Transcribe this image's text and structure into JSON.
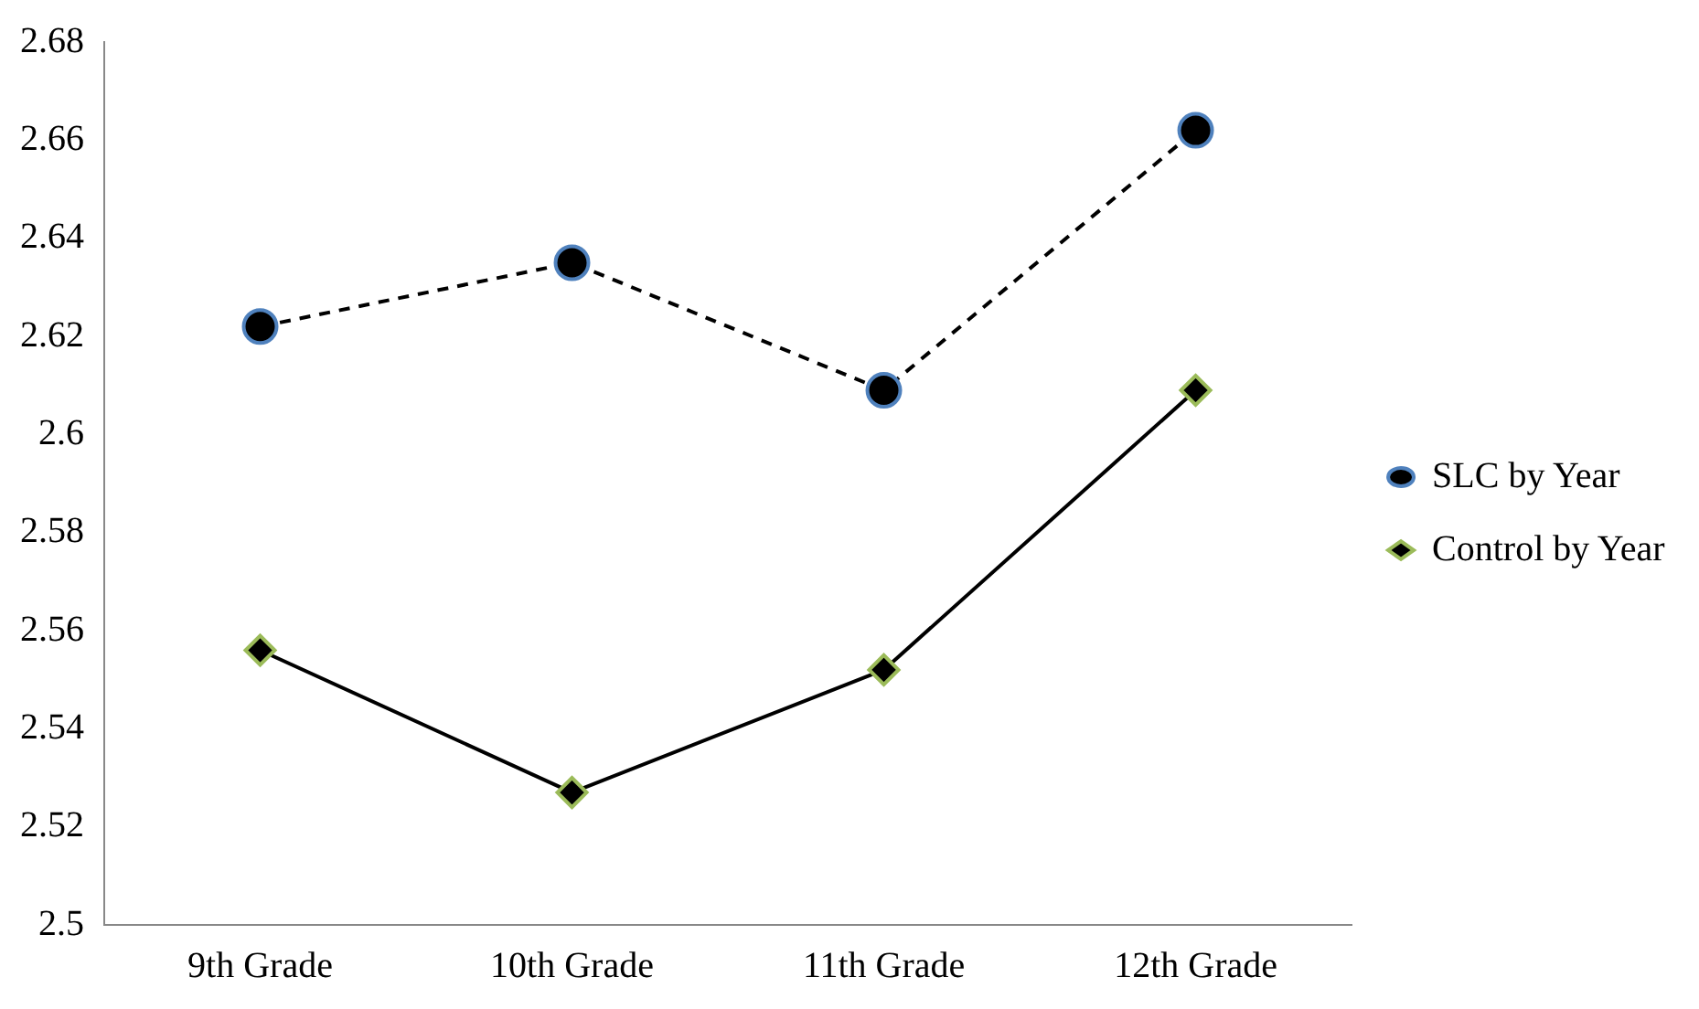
{
  "chart_data": {
    "type": "line",
    "categories": [
      "9th Grade",
      "10th Grade",
      "11th Grade",
      "12th Grade"
    ],
    "series": [
      {
        "name": "SLC by Year",
        "color": "#000000",
        "values": [
          2.622,
          2.635,
          2.609,
          2.662
        ],
        "marker": "circle",
        "line_style": "dashed"
      },
      {
        "name": "Control by Year",
        "color": "#000000",
        "values": [
          2.556,
          2.527,
          2.552,
          2.609
        ],
        "marker": "diamond",
        "line_style": "solid"
      }
    ],
    "ylim": [
      2.5,
      2.68
    ],
    "yticks": [
      2.5,
      2.52,
      2.54,
      2.56,
      2.58,
      2.6,
      2.62,
      2.64,
      2.66,
      2.68
    ],
    "grid": false,
    "legend": "right"
  }
}
